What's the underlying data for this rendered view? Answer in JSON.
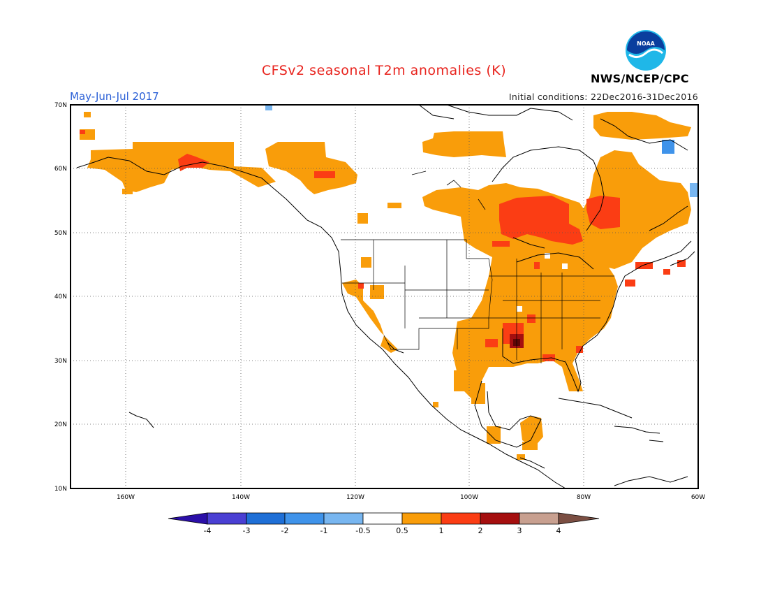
{
  "title": "CFSv2 seasonal T2m anomalies (K)",
  "period": "May-Jun-Jul 2017",
  "initial_conditions": "Initial conditions: 22Dec2016-31Dec2016",
  "agency": "NWS/NCEP/CPC",
  "logo_text": "NOAA",
  "map": {
    "lat_labels": [
      "70N",
      "60N",
      "50N",
      "40N",
      "30N",
      "20N",
      "10N"
    ],
    "lon_labels": [
      "160W",
      "140W",
      "120W",
      "100W",
      "80W",
      "60W"
    ]
  },
  "colorbar": {
    "labels": [
      "-4",
      "-3",
      "-2",
      "-1",
      "-0.5",
      "0.5",
      "1",
      "2",
      "3",
      "4"
    ],
    "colors": [
      "#2b0fa8",
      "#4a3fd3",
      "#1f6fd6",
      "#3f93ea",
      "#78b6f0",
      "#ffffff",
      "#f99d0a",
      "#fb3d14",
      "#a50f0f",
      "#c8a090",
      "#7b4e42"
    ]
  },
  "anomaly_colors": {
    "0.5-1": "#f99d0a",
    "1-2": "#fb3d14",
    "2-3": "#a50f0f",
    "-1--0.5": "#78b6f0",
    "-2--1": "#3f93ea"
  }
}
